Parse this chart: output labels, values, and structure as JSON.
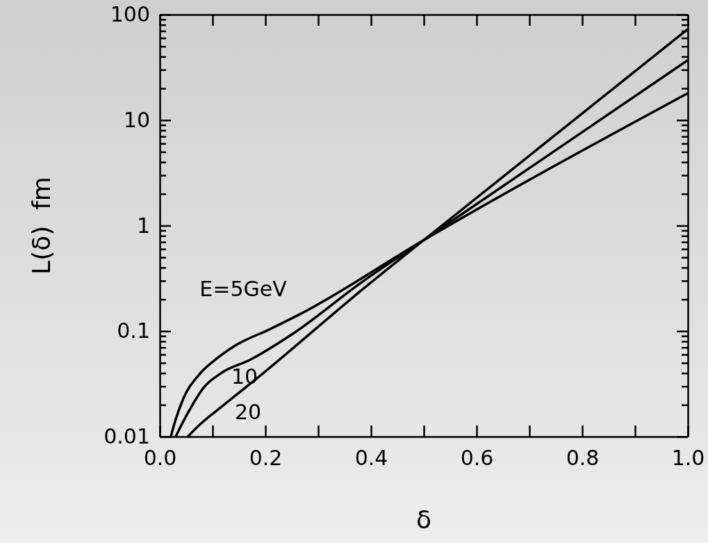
{
  "chart_data": {
    "type": "line",
    "xlabel": "δ",
    "ylabel": "L(δ)  fm",
    "log": "y",
    "grid": false,
    "legend": false,
    "marker": "none",
    "line_style": "solid",
    "xlim": [
      0,
      1
    ],
    "ylim": [
      0.01,
      100
    ],
    "xticks": [
      {
        "value": 0,
        "label": "0.0"
      },
      {
        "value": 0.1,
        "label": null
      },
      {
        "value": 0.2,
        "label": "0.2"
      },
      {
        "value": 0.3,
        "label": null
      },
      {
        "value": 0.4,
        "label": "0.4"
      },
      {
        "value": 0.5,
        "label": null
      },
      {
        "value": 0.6,
        "label": "0.6"
      },
      {
        "value": 0.7,
        "label": null
      },
      {
        "value": 0.8,
        "label": "0.8"
      },
      {
        "value": 0.9,
        "label": null
      },
      {
        "value": 1,
        "label": "1.0"
      }
    ],
    "yticks": [
      0.01,
      {
        "value": 0.02,
        "label": null
      },
      {
        "value": 0.03,
        "label": null
      },
      {
        "value": 0.04,
        "label": null
      },
      {
        "value": 0.05,
        "label": null
      },
      {
        "value": 0.06,
        "label": null
      },
      {
        "value": 0.07,
        "label": null
      },
      {
        "value": 0.08,
        "label": null
      },
      {
        "value": 0.09,
        "label": null
      },
      0.1,
      {
        "value": 0.2,
        "label": null
      },
      {
        "value": 0.3,
        "label": null
      },
      {
        "value": 0.4,
        "label": null
      },
      {
        "value": 0.5,
        "label": null
      },
      {
        "value": 0.6,
        "label": null
      },
      {
        "value": 0.7,
        "label": null
      },
      {
        "value": 0.8,
        "label": null
      },
      {
        "value": 0.9,
        "label": null
      },
      1,
      {
        "value": 2,
        "label": null
      },
      {
        "value": 3,
        "label": null
      },
      {
        "value": 4,
        "label": null
      },
      {
        "value": 5,
        "label": null
      },
      {
        "value": 6,
        "label": null
      },
      {
        "value": 7,
        "label": null
      },
      {
        "value": 8,
        "label": null
      },
      {
        "value": 9,
        "label": null
      },
      10,
      {
        "value": 20,
        "label": null
      },
      {
        "value": 30,
        "label": null
      },
      {
        "value": 40,
        "label": null
      },
      {
        "value": 50,
        "label": null
      },
      {
        "value": 60,
        "label": null
      },
      {
        "value": 70,
        "label": null
      },
      {
        "value": 80,
        "label": null
      },
      {
        "value": 90,
        "label": null
      },
      100
    ],
    "series": [
      {
        "name": "E=5GeV",
        "color": "#000000",
        "x": [
          0.021,
          0.026,
          0.044,
          0.075,
          0.11,
          0.145,
          0.206,
          0.268,
          0.5,
          1
        ],
        "values": [
          0.01,
          0.0124,
          0.0226,
          0.039,
          0.056,
          0.074,
          0.103,
          0.147,
          0.73,
          18
        ]
      },
      {
        "name": "10",
        "color": "#000000",
        "x": [
          0.03,
          0.053,
          0.083,
          0.118,
          0.171,
          0.25,
          0.382,
          0.5,
          1
        ],
        "values": [
          0.01,
          0.0167,
          0.0291,
          0.0405,
          0.0535,
          0.093,
          0.29,
          0.73,
          37
        ]
      },
      {
        "name": "20",
        "color": "#000000",
        "x": [
          0.053,
          0.075,
          0.118,
          0.184,
          0.382,
          0.5,
          1
        ],
        "values": [
          0.01,
          0.0129,
          0.0194,
          0.0357,
          0.244,
          0.73,
          73
        ]
      }
    ]
  }
}
